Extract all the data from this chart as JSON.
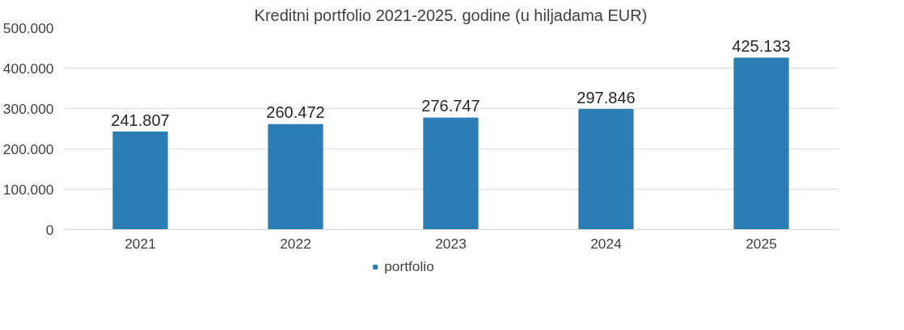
{
  "chart_data": {
    "type": "bar",
    "title": "Kreditni portfolio 2021-2025. godine (u hiljadama EUR)",
    "categories": [
      "2021",
      "2022",
      "2023",
      "2024",
      "2025"
    ],
    "series": [
      {
        "name": "portfolio",
        "color": "#2a7db5",
        "values": [
          241807,
          260472,
          276747,
          297846,
          425133
        ],
        "value_labels": [
          "241.807",
          "260.472",
          "276.747",
          "297.846",
          "425.133"
        ]
      }
    ],
    "ylim": [
      0,
      500000
    ],
    "yticks": [
      {
        "value": 0,
        "label": "0"
      },
      {
        "value": 100000,
        "label": "100.000"
      },
      {
        "value": 200000,
        "label": "200.000"
      },
      {
        "value": 300000,
        "label": "300.000"
      },
      {
        "value": 400000,
        "label": "400.000"
      },
      {
        "value": 500000,
        "label": "500.000"
      }
    ],
    "grid": "y",
    "legend": "bottom"
  }
}
